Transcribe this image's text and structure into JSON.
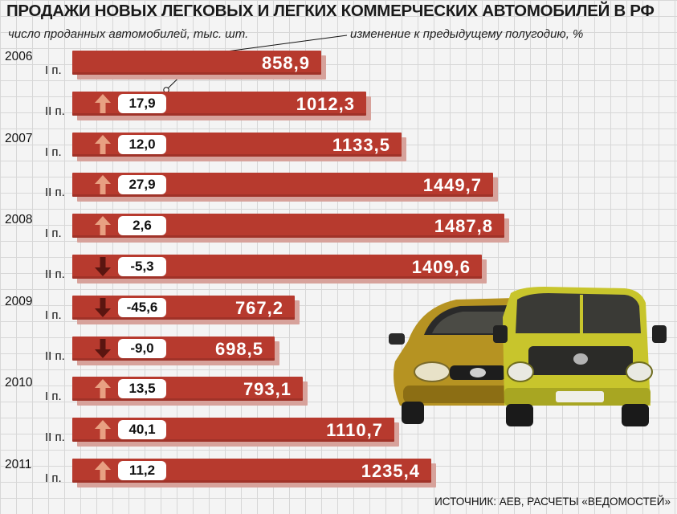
{
  "title": "ПРОДАЖИ НОВЫХ ЛЕГКОВЫХ И ЛЕГКИХ КОММЕРЧЕСКИХ АВТОМОБИЛЕЙ В РФ",
  "subtitle_left": "число проданных автомобилей, тыс. шт.",
  "subtitle_right": "изменение к предыдущему полугодию, %",
  "source": "ИСТОЧНИК: АЕВ, РАСЧЕТЫ «ВЕДОМОСТЕЙ»",
  "colors": {
    "bar": "#b73a2e",
    "bar_shadow": "#d7a29b",
    "arrow_up": "#e8a082",
    "arrow_down": "#5a1510"
  },
  "chart_data": {
    "type": "bar",
    "orientation": "horizontal",
    "title": "ПРОДАЖИ НОВЫХ ЛЕГКОВЫХ И ЛЕГКИХ КОММЕРЧЕСКИХ АВТОМОБИЛЕЙ В РФ",
    "units": "тыс. шт.",
    "xlim": [
      0,
      1600
    ],
    "categories": [
      {
        "year": "2006",
        "half": "I п."
      },
      {
        "year": "",
        "half": "II п."
      },
      {
        "year": "2007",
        "half": "I п."
      },
      {
        "year": "",
        "half": "II п."
      },
      {
        "year": "2008",
        "half": "I п."
      },
      {
        "year": "",
        "half": "II п."
      },
      {
        "year": "2009",
        "half": "I п."
      },
      {
        "year": "",
        "half": "II п."
      },
      {
        "year": "2010",
        "half": "I п."
      },
      {
        "year": "",
        "half": "II п."
      },
      {
        "year": "2011",
        "half": "I п."
      }
    ],
    "values": [
      858.9,
      1012.3,
      1133.5,
      1449.7,
      1487.8,
      1409.6,
      767.2,
      698.5,
      793.1,
      1110.7,
      1235.4
    ],
    "value_labels": [
      "858,9",
      "1012,3",
      "1133,5",
      "1449,7",
      "1487,8",
      "1409,6",
      "767,2",
      "698,5",
      "793,1",
      "1110,7",
      "1235,4"
    ],
    "changes": [
      null,
      17.9,
      12.0,
      27.9,
      2.6,
      -5.3,
      -45.6,
      -9.0,
      13.5,
      40.1,
      11.2
    ],
    "change_labels": [
      "",
      "17,9",
      "12,0",
      "27,9",
      "2,6",
      "-5,3",
      "-45,6",
      "-9,0",
      "13,5",
      "40,1",
      "11,2"
    ]
  }
}
